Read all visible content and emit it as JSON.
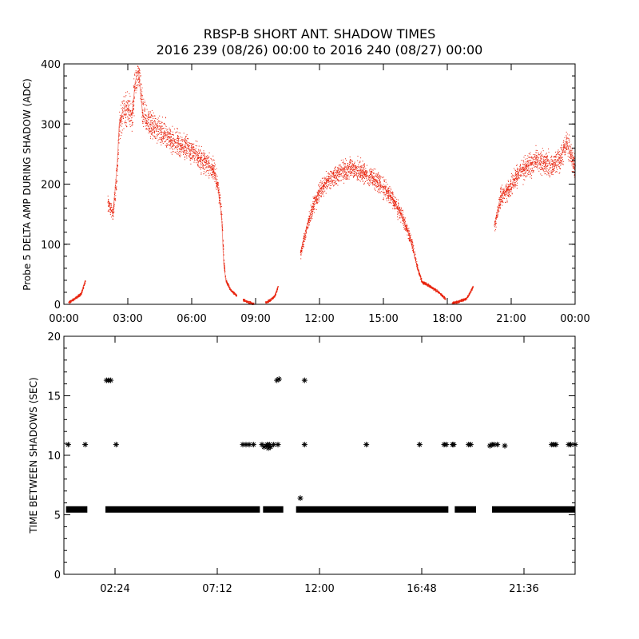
{
  "figure": {
    "title_line1": "RBSP-B SHORT ANT. SHADOW TIMES",
    "title_line2": "2016 239 (08/26) 00:00 to 2016 240 (08/27) 00:00"
  },
  "colors": {
    "top_series": "#e8220c",
    "bottom_series": "#000000",
    "axes": "#000000",
    "background": "#ffffff"
  },
  "chart_data": [
    {
      "type": "scatter",
      "title": "",
      "xlabel": "",
      "ylabel": "Probe 5 DELTA AMP DURING SHADOW (ADC)",
      "x_unit": "hours since 2016-08-26 00:00",
      "xlim": [
        0,
        24
      ],
      "ylim": [
        0,
        400
      ],
      "x_tick_values": [
        0,
        3,
        6,
        9,
        12,
        15,
        18,
        21,
        24
      ],
      "x_tick_labels": [
        "00:00",
        "03:00",
        "06:00",
        "09:00",
        "12:00",
        "15:00",
        "18:00",
        "21:00",
        "00:00"
      ],
      "y_tick_values": [
        0,
        100,
        200,
        300,
        400
      ],
      "y_tick_labels": [
        "0",
        "100",
        "200",
        "300",
        "400"
      ],
      "grid": false,
      "marker": "dot",
      "segments": [
        {
          "x": [
            0.2,
            0.5,
            0.8,
            1.0
          ],
          "y": [
            3,
            10,
            18,
            40
          ]
        },
        {
          "x": [
            2.05,
            2.3,
            2.5,
            2.6,
            2.75,
            3.0,
            3.2,
            3.35,
            3.5,
            3.7,
            4.0,
            4.5,
            5.0,
            5.5,
            6.0,
            6.5,
            7.0,
            7.2,
            7.4,
            7.5,
            7.6,
            7.8,
            8.1
          ],
          "y": [
            170,
            150,
            230,
            300,
            320,
            325,
            315,
            370,
            390,
            315,
            300,
            290,
            275,
            265,
            255,
            240,
            225,
            200,
            150,
            70,
            40,
            25,
            15
          ]
        },
        {
          "x": [
            8.4,
            8.7,
            8.9
          ],
          "y": [
            8,
            3,
            1
          ]
        },
        {
          "x": [
            9.45,
            9.7,
            9.9,
            10.05
          ],
          "y": [
            3,
            8,
            15,
            30
          ]
        },
        {
          "x": [
            11.1,
            11.4,
            11.7,
            12.0,
            12.5,
            13.0,
            13.5,
            14.0,
            14.5,
            15.0,
            15.5,
            16.0,
            16.3,
            16.6,
            16.8,
            17.2,
            17.6,
            17.9
          ],
          "y": [
            85,
            130,
            165,
            190,
            210,
            222,
            226,
            220,
            210,
            195,
            172,
            135,
            105,
            60,
            38,
            30,
            20,
            10
          ]
        },
        {
          "x": [
            18.2,
            18.5,
            18.9,
            19.2
          ],
          "y": [
            2,
            5,
            10,
            30
          ]
        },
        {
          "x": [
            20.2,
            20.5,
            20.8,
            21.1,
            21.4,
            21.8,
            22.2,
            22.6,
            23.0,
            23.3,
            23.6,
            24.0
          ],
          "y": [
            130,
            180,
            190,
            205,
            222,
            230,
            240,
            235,
            232,
            245,
            270,
            225
          ]
        }
      ]
    },
    {
      "type": "scatter",
      "title": "",
      "xlabel": "",
      "ylabel": "TIME BETWEEN SHADOWS (SEC)",
      "x_unit": "hours since 2016-08-26 00:00",
      "xlim": [
        0,
        24
      ],
      "ylim": [
        0,
        20
      ],
      "x_tick_values": [
        2.4,
        7.2,
        12.0,
        16.8,
        21.6
      ],
      "x_tick_labels": [
        "02:24",
        "07:12",
        "12:00",
        "16:48",
        "21:36"
      ],
      "y_tick_values": [
        0,
        5,
        10,
        15,
        20
      ],
      "y_tick_labels": [
        "0",
        "5",
        "10",
        "15",
        "20"
      ],
      "grid": false,
      "marker": "asterisk",
      "band_value": 5.45,
      "band_ranges": [
        [
          0.1,
          1.1
        ],
        [
          1.95,
          9.2
        ],
        [
          9.35,
          10.3
        ],
        [
          10.9,
          18.05
        ],
        [
          18.35,
          19.35
        ],
        [
          20.1,
          24.0
        ]
      ],
      "points": {
        "x": [
          0.2,
          1.0,
          2.0,
          2.1,
          2.2,
          2.45,
          8.4,
          8.55,
          8.7,
          8.9,
          9.3,
          9.4,
          9.5,
          9.55,
          9.6,
          9.65,
          9.7,
          9.85,
          10.05,
          10.0,
          10.1,
          11.1,
          11.3,
          11.3,
          14.2,
          16.7,
          17.85,
          17.95,
          18.25,
          18.3,
          19.0,
          19.1,
          20.0,
          20.1,
          20.2,
          20.35,
          20.7,
          22.9,
          23.0,
          23.1,
          23.7,
          23.8,
          24.0
        ],
        "y": [
          10.9,
          10.9,
          16.3,
          16.3,
          16.3,
          10.9,
          10.9,
          10.9,
          10.9,
          10.9,
          10.9,
          10.7,
          10.8,
          10.9,
          10.6,
          10.9,
          10.7,
          10.9,
          10.9,
          16.3,
          16.4,
          6.4,
          16.3,
          10.9,
          10.9,
          10.9,
          10.9,
          10.9,
          10.9,
          10.9,
          10.9,
          10.9,
          10.8,
          10.9,
          10.9,
          10.9,
          10.8,
          10.9,
          10.9,
          10.9,
          10.9,
          10.9,
          10.9
        ]
      }
    }
  ]
}
